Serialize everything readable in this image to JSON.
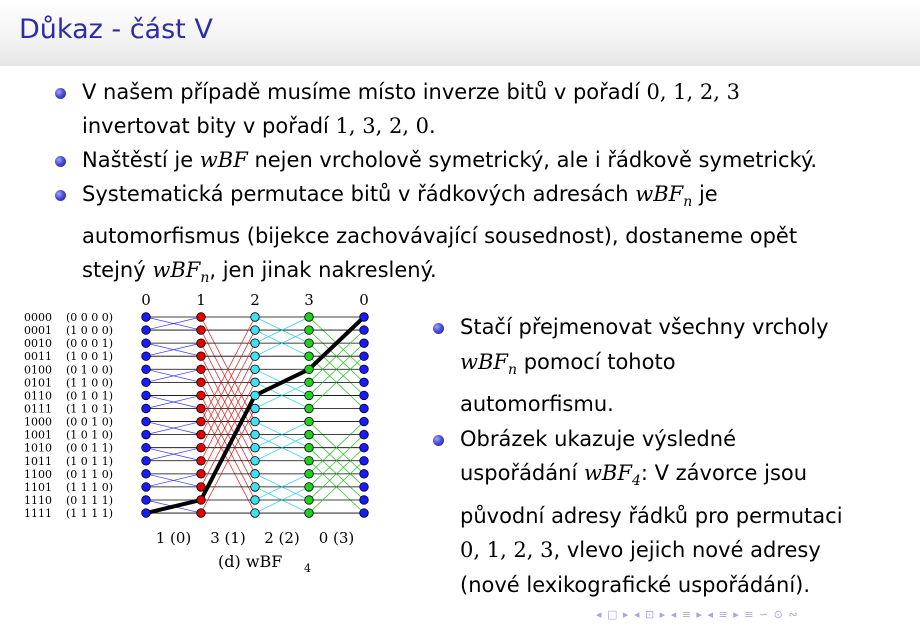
{
  "slide": {
    "title": "Důkaz - část V"
  },
  "top_bullets": [
    {
      "line1": [
        "V našem případě musíme místo inverze bitů v pořadí ",
        "0, 1, 2, 3"
      ],
      "line2": [
        "invertovat bity v pořadí ",
        "1, 3, 2, 0",
        "."
      ]
    },
    {
      "line1": [
        "Naštěstí je ",
        "wBF",
        " nejen vrcholově symetrický, ale i řádkově symetrický."
      ]
    },
    {
      "line1": [
        "Systematická permutace bitů v řádkových adresách ",
        "wBF",
        "n",
        " je"
      ],
      "line2": [
        "automorfismus (bijekce zachovávající sousednost), dostaneme opět"
      ],
      "line3": [
        "stejný ",
        "wBF",
        "n",
        ", jen jinak nakreslený."
      ]
    }
  ],
  "right_bullets": [
    {
      "line1": [
        "Stačí přejmenovat všechny vrcholy"
      ],
      "line2": [
        "wBF",
        "n",
        " pomocí tohoto"
      ],
      "line3": [
        "automorfismu."
      ]
    },
    {
      "line1": [
        "Obrázek ukazuje výsledné"
      ],
      "line2": [
        "uspořádání ",
        "wBF",
        "4",
        ": V závorce jsou"
      ],
      "line3": [
        "původní adresy řádků pro permutaci"
      ],
      "line4": [
        "0, 1, 2, 3",
        ", vlevo jejich nové adresy"
      ],
      "line5": [
        "(nové lexikografické uspořádání)."
      ]
    }
  ],
  "figure": {
    "top_labels": [
      "0",
      "1",
      "2",
      "3",
      "0"
    ],
    "bottom_labels": [
      "1 (0)",
      "3 (1)",
      "2 (2)",
      "0 (3)"
    ],
    "caption_main": "(d)  wBF",
    "caption_sub": "4",
    "row_labels": [
      "0000",
      "0001",
      "0010",
      "0011",
      "0100",
      "0101",
      "0110",
      "0111",
      "1000",
      "1001",
      "1010",
      "1011",
      "1100",
      "1101",
      "1110",
      "1111"
    ],
    "row_orig": [
      "(0 0 0 0)",
      "(1 0 0 0)",
      "(0 0 0 1)",
      "(1 0 0 1)",
      "(0 1 0 0)",
      "(1 1 0 0)",
      "(0 1 0 1)",
      "(1 1 0 1)",
      "(0 0 1 0)",
      "(1 0 1 0)",
      "(0 0 1 1)",
      "(1 0 1 1)",
      "(0 1 1 0)",
      "(1 1 1 0)",
      "(0 1 1 1)",
      "(1 1 1 1)"
    ],
    "stage_flip_bits": [
      1,
      8,
      2,
      4
    ],
    "stage_edge_colors": [
      "#3333ff",
      "#e01c1c",
      "#22d0e8",
      "#22c422"
    ],
    "column_node_colors": [
      "#1a1aff",
      "#e60000",
      "#3fe0f0",
      "#20d020",
      "#1a1aff"
    ],
    "highlight_path_rows": [
      15,
      14,
      6,
      4,
      0
    ]
  },
  "navigation": {
    "icons": [
      "◂ □ ▸",
      "◂ ⊡ ▸",
      "◂ ≡ ▸",
      "◂ ≡ ▸",
      "≡",
      "∽ ⊙ ∾"
    ]
  }
}
